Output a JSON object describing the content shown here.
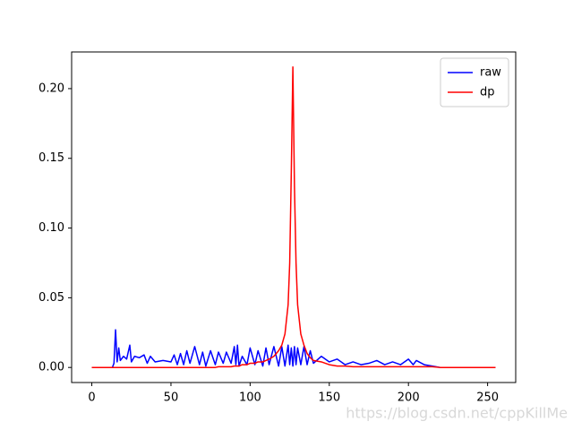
{
  "chart_data": {
    "type": "line",
    "x": [
      0,
      5,
      10,
      13,
      14,
      15,
      16,
      17,
      18,
      20,
      22,
      24,
      25,
      27,
      30,
      33,
      35,
      37,
      40,
      45,
      50,
      52,
      54,
      56,
      58,
      60,
      62,
      65,
      68,
      70,
      72,
      75,
      78,
      80,
      83,
      85,
      88,
      90,
      91,
      92,
      93,
      95,
      98,
      100,
      103,
      105,
      108,
      110,
      112,
      115,
      118,
      120,
      122,
      124,
      125,
      126,
      127,
      128,
      129,
      130,
      132,
      134,
      136,
      138,
      140,
      145,
      150,
      155,
      160,
      165,
      170,
      175,
      180,
      185,
      190,
      195,
      200,
      203,
      205,
      210,
      215,
      220,
      230,
      240,
      255
    ],
    "series": [
      {
        "name": "raw",
        "color": "#0000ff",
        "values": [
          0,
          0,
          0,
          0,
          0.003,
          0.027,
          0.004,
          0.014,
          0.005,
          0.008,
          0.006,
          0.016,
          0.004,
          0.008,
          0.007,
          0.009,
          0.003,
          0.008,
          0.004,
          0.005,
          0.004,
          0.009,
          0.002,
          0.01,
          0.002,
          0.012,
          0.003,
          0.015,
          0.002,
          0.011,
          0.001,
          0.012,
          0.002,
          0.011,
          0.003,
          0.011,
          0.003,
          0.015,
          0.002,
          0.016,
          0.001,
          0.008,
          0.002,
          0.014,
          0.002,
          0.012,
          0.001,
          0.014,
          0.002,
          0.015,
          0.001,
          0.015,
          0.001,
          0.016,
          0.002,
          0.014,
          0.001,
          0.015,
          0.002,
          0.014,
          0.002,
          0.015,
          0.002,
          0.012,
          0.003,
          0.008,
          0.004,
          0.006,
          0.002,
          0.004,
          0.002,
          0.003,
          0.005,
          0.002,
          0.004,
          0.002,
          0.006,
          0.002,
          0.005,
          0.002,
          0.001,
          0,
          0,
          0,
          0
        ]
      },
      {
        "name": "dp",
        "color": "#ff0000",
        "values": [
          0,
          0,
          0,
          0,
          0,
          0,
          0,
          0,
          0,
          0,
          0,
          0,
          0,
          0,
          0,
          0,
          0,
          0,
          0,
          0,
          0,
          0,
          0,
          0,
          0,
          0,
          0,
          0,
          0,
          0,
          0,
          0,
          0,
          0.0005,
          0.0005,
          0.0005,
          0.0005,
          0.001,
          0.001,
          0.001,
          0.001,
          0.002,
          0.002,
          0.003,
          0.003,
          0.004,
          0.004,
          0.005,
          0.006,
          0.008,
          0.012,
          0.016,
          0.024,
          0.045,
          0.075,
          0.14,
          0.2155,
          0.13,
          0.075,
          0.045,
          0.024,
          0.016,
          0.01,
          0.007,
          0.005,
          0.004,
          0.002,
          0.001,
          0.001,
          0.0005,
          0.0005,
          0.0005,
          0.0005,
          0.0005,
          0.0005,
          0.0005,
          0.0005,
          0.0005,
          0.0005,
          0.0005,
          0.0005,
          0,
          0,
          0,
          0
        ]
      }
    ],
    "xlim": [
      -12.75,
      267.75
    ],
    "xticks": [
      0,
      50,
      100,
      150,
      200,
      250
    ],
    "ylim": [
      -0.0108,
      0.2263
    ],
    "yticks": [
      {
        "value": 0,
        "label": "0.00"
      },
      {
        "value": 0.05,
        "label": "0.05"
      },
      {
        "value": 0.1,
        "label": "0.10"
      },
      {
        "value": 0.15,
        "label": "0.15"
      },
      {
        "value": 0.2,
        "label": "0.20"
      }
    ],
    "legend": "upper right"
  },
  "watermark": "https://blog.csdn.net/cppKillMe"
}
